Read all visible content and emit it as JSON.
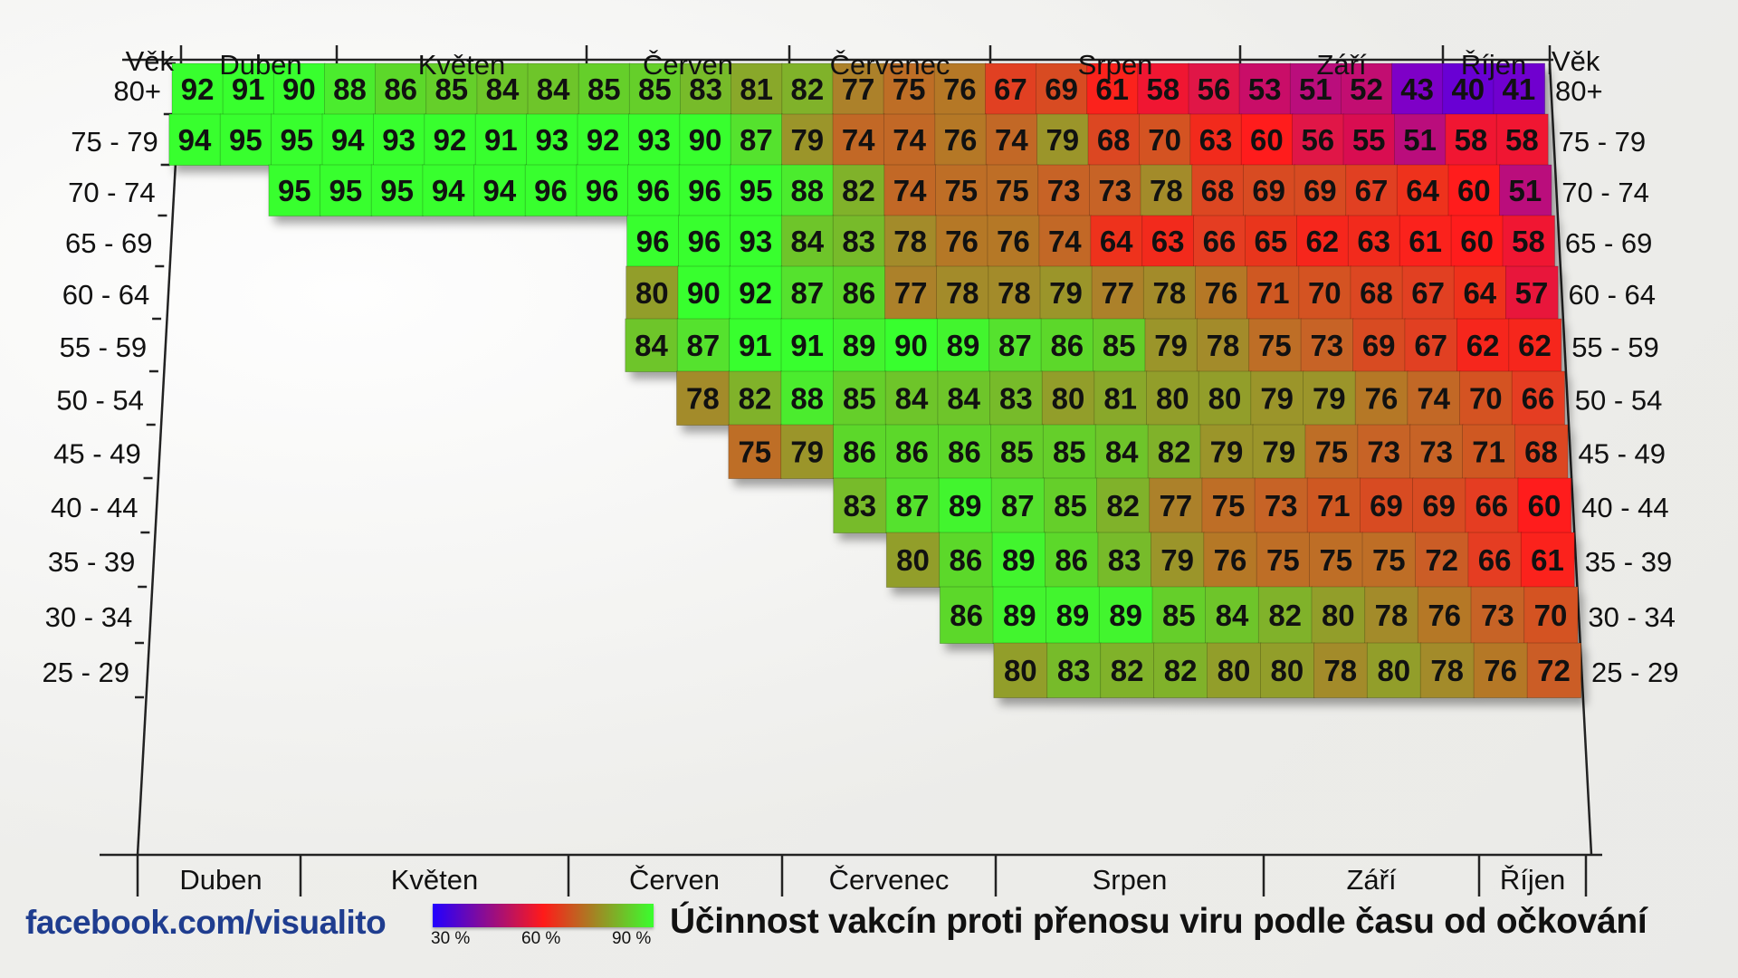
{
  "title": "Účinnost vakcín proti přenosu viru podle času od očkování",
  "source": "facebook.com/visualito",
  "header_age_label": "Věk",
  "legend": {
    "ticks": [
      "30 %",
      "60 %",
      "90 %"
    ],
    "colors": [
      "#2200ff",
      "#ff1a1a",
      "#39ff2e"
    ]
  },
  "months_top": [
    "Duben",
    "Květen",
    "Červen",
    "Červenec",
    "Srpen",
    "Září",
    "Říjen"
  ],
  "months_bottom": [
    "Duben",
    "Květen",
    "Červen",
    "Červenec",
    "Srpen",
    "Září",
    "Říjen"
  ],
  "chart_data": {
    "type": "heatmap",
    "title": "Účinnost vakcín proti přenosu viru podle času od očkování",
    "row_labels": [
      "80+",
      "75 - 79",
      "70 - 74",
      "65 - 69",
      "60 - 64",
      "55 - 59",
      "50 - 54",
      "45 - 49",
      "40 - 44",
      "35 - 39",
      "30 - 34",
      "25 - 29"
    ],
    "color_scale": {
      "min": 30,
      "mid": 60,
      "max": 90,
      "unit": "%"
    },
    "rows": [
      {
        "age": "80+",
        "start_col": 0,
        "values": [
          92,
          91,
          90,
          88,
          86,
          85,
          84,
          84,
          85,
          85,
          83,
          81,
          82,
          77,
          75,
          76,
          67,
          69,
          61,
          58,
          56,
          53,
          51,
          52,
          43,
          40,
          41
        ]
      },
      {
        "age": "75 - 79",
        "start_col": 0,
        "values": [
          94,
          95,
          95,
          94,
          93,
          92,
          91,
          93,
          92,
          93,
          90,
          87,
          79,
          74,
          74,
          76,
          74,
          79,
          68,
          70,
          63,
          60,
          56,
          55,
          51,
          58,
          58
        ]
      },
      {
        "age": "70 - 74",
        "start_col": 2,
        "values": [
          95,
          95,
          95,
          94,
          94,
          96,
          96,
          96,
          96,
          95,
          88,
          82,
          74,
          75,
          75,
          73,
          73,
          78,
          68,
          69,
          69,
          67,
          64,
          60,
          51
        ]
      },
      {
        "age": "65 - 69",
        "start_col": 9,
        "values": [
          96,
          96,
          93,
          84,
          83,
          78,
          76,
          76,
          74,
          64,
          63,
          66,
          65,
          62,
          63,
          61,
          60,
          58
        ]
      },
      {
        "age": "60 - 64",
        "start_col": 9,
        "values": [
          80,
          90,
          92,
          87,
          86,
          77,
          78,
          78,
          79,
          77,
          78,
          76,
          71,
          70,
          68,
          67,
          64,
          57
        ]
      },
      {
        "age": "55 - 59",
        "start_col": 9,
        "values": [
          84,
          87,
          91,
          91,
          89,
          90,
          89,
          87,
          86,
          85,
          79,
          78,
          75,
          73,
          69,
          67,
          62,
          62
        ]
      },
      {
        "age": "50 - 54",
        "start_col": 10,
        "values": [
          78,
          82,
          88,
          85,
          84,
          84,
          83,
          80,
          81,
          80,
          80,
          79,
          79,
          76,
          74,
          70,
          66
        ]
      },
      {
        "age": "45 - 49",
        "start_col": 11,
        "values": [
          75,
          79,
          86,
          86,
          86,
          85,
          85,
          84,
          82,
          79,
          79,
          75,
          73,
          73,
          71,
          68
        ]
      },
      {
        "age": "40 - 44",
        "start_col": 13,
        "values": [
          83,
          87,
          89,
          87,
          85,
          82,
          77,
          75,
          73,
          71,
          69,
          69,
          66,
          60
        ]
      },
      {
        "age": "35 - 39",
        "start_col": 14,
        "values": [
          80,
          86,
          89,
          86,
          83,
          79,
          76,
          75,
          75,
          75,
          72,
          66,
          61
        ]
      },
      {
        "age": "30 - 34",
        "start_col": 15,
        "values": [
          86,
          89,
          89,
          89,
          85,
          84,
          82,
          80,
          78,
          76,
          73,
          70
        ]
      },
      {
        "age": "25 - 29",
        "start_col": 16,
        "values": [
          80,
          83,
          82,
          82,
          80,
          80,
          78,
          80,
          78,
          76,
          72
        ]
      }
    ]
  }
}
